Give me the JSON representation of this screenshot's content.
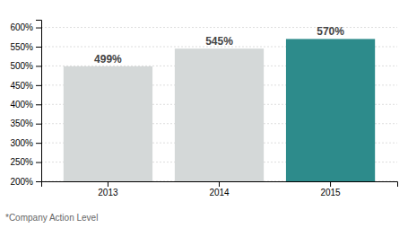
{
  "chart_data": {
    "type": "bar",
    "categories": [
      "2013",
      "2014",
      "2015"
    ],
    "values": [
      499,
      545,
      570
    ],
    "value_labels": [
      "499%",
      "545%",
      "570%"
    ],
    "data_labels": true,
    "colors": [
      "#d4d8d8",
      "#d4d8d8",
      "#2d8b8b"
    ],
    "ylim": [
      200,
      620
    ],
    "yticks": [
      {
        "value": 200,
        "label": "200%"
      },
      {
        "value": 250,
        "label": "250%"
      },
      {
        "value": 300,
        "label": "300%"
      },
      {
        "value": 350,
        "label": "350%"
      },
      {
        "value": 400,
        "label": "400%"
      },
      {
        "value": 450,
        "label": "450%"
      },
      {
        "value": 500,
        "label": "500%"
      },
      {
        "value": 550,
        "label": "550%"
      },
      {
        "value": 600,
        "label": "600%"
      }
    ],
    "grid": true,
    "annotations": [
      "*Company Action Level"
    ]
  }
}
